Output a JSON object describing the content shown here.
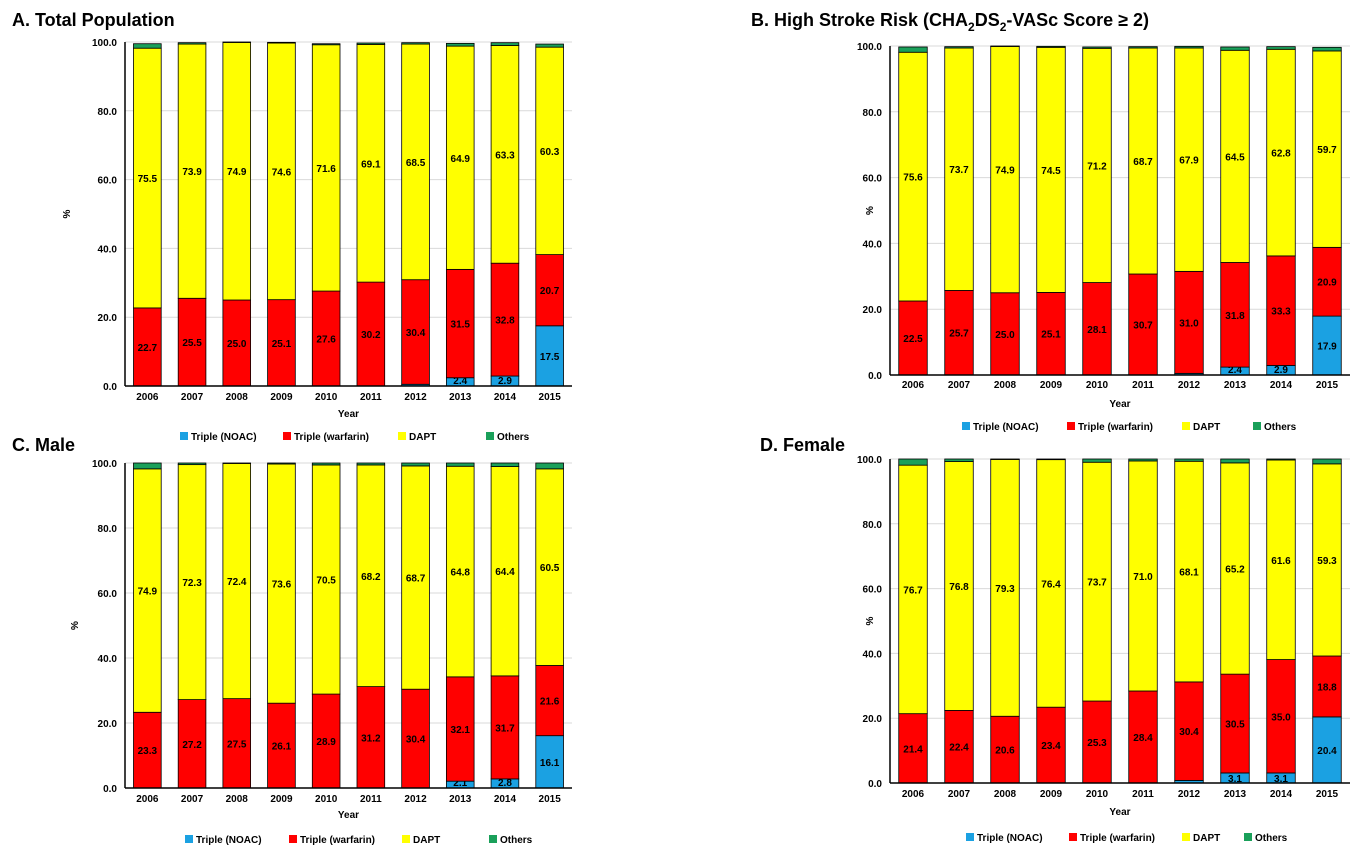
{
  "colors": {
    "triple_noac": "#1ba1e2",
    "triple_warfarin": "#ff0000",
    "dapt": "#ffff00",
    "others": "#1aa05a",
    "bar_stroke": "#000000",
    "grid": "#d9d9d9"
  },
  "chart_data": [
    {
      "type": "bar",
      "stacked": true,
      "title": "A. Total Population",
      "xlabel": "Year",
      "ylabel": "%",
      "ylim": [
        0,
        100
      ],
      "yticks": [
        "0.0",
        "20.0",
        "40.0",
        "60.0",
        "80.0",
        "100.0"
      ],
      "grid": true,
      "legend_position": "bottom",
      "categories": [
        "2006",
        "2007",
        "2008",
        "2009",
        "2010",
        "2011",
        "2012",
        "2013",
        "2014",
        "2015"
      ],
      "series": [
        {
          "name": "Triple (NOAC)",
          "values": [
            0,
            0,
            0,
            0,
            0,
            0,
            0.5,
            2.4,
            2.9,
            17.5
          ],
          "labels": [
            "",
            "",
            "",
            "",
            "",
            "",
            "",
            "2.4",
            "2.9",
            "17.5"
          ]
        },
        {
          "name": "Triple (warfarin)",
          "values": [
            22.7,
            25.5,
            25.0,
            25.1,
            27.6,
            30.2,
            30.4,
            31.5,
            32.8,
            20.7
          ],
          "labels": [
            "22.7",
            "25.5",
            "25.0",
            "25.1",
            "27.6",
            "30.2",
            "30.4",
            "31.5",
            "32.8",
            "20.7"
          ]
        },
        {
          "name": "DAPT",
          "values": [
            75.5,
            73.9,
            74.9,
            74.6,
            71.6,
            69.1,
            68.5,
            64.9,
            63.3,
            60.3
          ],
          "labels": [
            "75.5",
            "73.9",
            "74.9",
            "74.6",
            "71.6",
            "69.1",
            "68.5",
            "64.9",
            "63.3",
            "60.3"
          ]
        },
        {
          "name": "Others",
          "values": [
            1.3,
            0.4,
            0.1,
            0.2,
            0.3,
            0.4,
            0.4,
            0.8,
            0.8,
            0.9
          ],
          "labels": [
            "",
            "",
            "",
            "",
            "",
            "",
            "",
            "",
            "",
            ""
          ]
        }
      ]
    },
    {
      "type": "bar",
      "stacked": true,
      "title": "B. High Stroke Risk (CHA2DS2-VASc Score ≥ 2)",
      "title_parts": {
        "a": "B. High Stroke Risk (CHA",
        "s1": "2",
        "b": "DS",
        "s2": "2",
        "c": "-VASc Score ≥ 2)"
      },
      "xlabel": "Year",
      "ylabel": "%",
      "ylim": [
        0,
        100
      ],
      "yticks": [
        "0.0",
        "20.0",
        "40.0",
        "60.0",
        "80.0",
        "100.0"
      ],
      "grid": true,
      "legend_position": "bottom",
      "categories": [
        "2006",
        "2007",
        "2008",
        "2009",
        "2010",
        "2011",
        "2012",
        "2013",
        "2014",
        "2015"
      ],
      "series": [
        {
          "name": "Triple (NOAC)",
          "values": [
            0,
            0,
            0,
            0,
            0,
            0,
            0.5,
            2.4,
            2.9,
            17.9
          ],
          "labels": [
            "",
            "",
            "",
            "",
            "",
            "",
            "",
            "2.4",
            "2.9",
            "17.9"
          ]
        },
        {
          "name": "Triple (warfarin)",
          "values": [
            22.5,
            25.7,
            25.0,
            25.1,
            28.1,
            30.7,
            31.0,
            31.8,
            33.3,
            20.9
          ],
          "labels": [
            "22.5",
            "25.7",
            "25.0",
            "25.1",
            "28.1",
            "30.7",
            "31.0",
            "31.8",
            "33.3",
            "20.9"
          ]
        },
        {
          "name": "DAPT",
          "values": [
            75.6,
            73.7,
            74.9,
            74.5,
            71.2,
            68.7,
            67.9,
            64.5,
            62.8,
            59.7
          ],
          "labels": [
            "75.6",
            "73.7",
            "74.9",
            "74.5",
            "71.2",
            "68.7",
            "67.9",
            "64.5",
            "62.8",
            "59.7"
          ]
        },
        {
          "name": "Others",
          "values": [
            1.6,
            0.4,
            0.1,
            0.3,
            0.4,
            0.4,
            0.5,
            1.0,
            0.8,
            1.1
          ],
          "labels": [
            "",
            "",
            "",
            "",
            "",
            "",
            "",
            "",
            "",
            ""
          ]
        }
      ]
    },
    {
      "type": "bar",
      "stacked": true,
      "title": "C. Male",
      "xlabel": "Year",
      "ylabel": "%",
      "ylim": [
        0,
        100
      ],
      "yticks": [
        "0.0",
        "20.0",
        "40.0",
        "60.0",
        "80.0",
        "100.0"
      ],
      "grid": true,
      "legend_position": "bottom",
      "categories": [
        "2006",
        "2007",
        "2008",
        "2009",
        "2010",
        "2011",
        "2012",
        "2013",
        "2014",
        "2015"
      ],
      "series": [
        {
          "name": "Triple (NOAC)",
          "values": [
            0,
            0,
            0,
            0,
            0,
            0,
            0,
            2.1,
            2.8,
            16.1
          ],
          "labels": [
            "",
            "",
            "",
            "",
            "",
            "",
            "",
            "2.1",
            "2.8",
            "16.1"
          ]
        },
        {
          "name": "Triple (warfarin)",
          "values": [
            23.3,
            27.2,
            27.5,
            26.1,
            28.9,
            31.2,
            30.4,
            32.1,
            31.7,
            21.6
          ],
          "labels": [
            "23.3",
            "27.2",
            "27.5",
            "26.1",
            "28.9",
            "31.2",
            "30.4",
            "32.1",
            "31.7",
            "21.6"
          ]
        },
        {
          "name": "DAPT",
          "values": [
            74.9,
            72.3,
            72.4,
            73.6,
            70.5,
            68.2,
            68.7,
            64.8,
            64.4,
            60.5
          ],
          "labels": [
            "74.9",
            "72.3",
            "72.4",
            "73.6",
            "70.5",
            "68.2",
            "68.7",
            "64.8",
            "64.4",
            "60.5"
          ]
        },
        {
          "name": "Others",
          "values": [
            1.8,
            0.5,
            0.1,
            0.3,
            0.6,
            0.6,
            0.9,
            1.0,
            1.1,
            1.8
          ],
          "labels": [
            "",
            "",
            "",
            "",
            "",
            "",
            "",
            "",
            "",
            ""
          ]
        }
      ]
    },
    {
      "type": "bar",
      "stacked": true,
      "title": "D. Female",
      "xlabel": "Year",
      "ylabel": "%",
      "ylim": [
        0,
        100
      ],
      "yticks": [
        "0.0",
        "20.0",
        "40.0",
        "60.0",
        "80.0",
        "100.0"
      ],
      "grid": true,
      "legend_position": "bottom",
      "categories": [
        "2006",
        "2007",
        "2008",
        "2009",
        "2010",
        "2011",
        "2012",
        "2013",
        "2014",
        "2015"
      ],
      "series": [
        {
          "name": "Triple (NOAC)",
          "values": [
            0,
            0,
            0,
            0,
            0,
            0,
            0.8,
            3.1,
            3.1,
            20.4
          ],
          "labels": [
            "",
            "",
            "",
            "",
            "",
            "",
            "",
            "3.1",
            "3.1",
            "20.4"
          ]
        },
        {
          "name": "Triple (warfarin)",
          "values": [
            21.4,
            22.4,
            20.6,
            23.4,
            25.3,
            28.4,
            30.4,
            30.5,
            35.0,
            18.8
          ],
          "labels": [
            "21.4",
            "22.4",
            "20.6",
            "23.4",
            "25.3",
            "28.4",
            "30.4",
            "30.5",
            "35.0",
            "18.8"
          ]
        },
        {
          "name": "DAPT",
          "values": [
            76.7,
            76.8,
            79.3,
            76.4,
            73.7,
            71.0,
            68.1,
            65.2,
            61.6,
            59.3
          ],
          "labels": [
            "76.7",
            "76.8",
            "79.3",
            "76.4",
            "73.7",
            "71.0",
            "68.1",
            "65.2",
            "61.6",
            "59.3"
          ]
        },
        {
          "name": "Others",
          "values": [
            1.9,
            0.8,
            0.1,
            0.2,
            1.0,
            0.6,
            0.7,
            1.2,
            0.3,
            1.5
          ],
          "labels": [
            "",
            "",
            "",
            "",
            "",
            "",
            "",
            "",
            "",
            ""
          ]
        }
      ]
    }
  ]
}
